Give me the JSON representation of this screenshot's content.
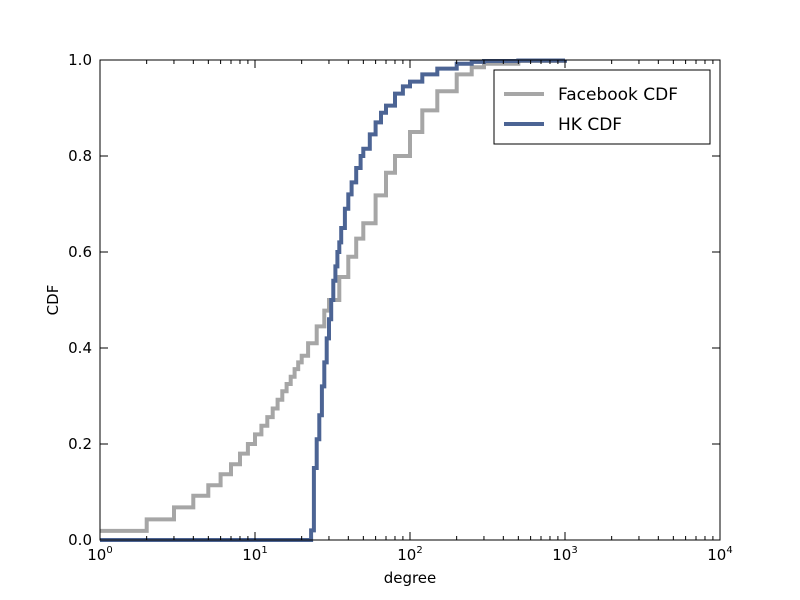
{
  "chart_data": {
    "type": "line",
    "title": "",
    "xlabel": "degree",
    "ylabel": "CDF",
    "xscale": "log",
    "xlim": [
      1,
      10000
    ],
    "ylim": [
      0,
      1
    ],
    "x_ticks": [
      {
        "base": "10",
        "exp": "0",
        "value": 1
      },
      {
        "base": "10",
        "exp": "1",
        "value": 10
      },
      {
        "base": "10",
        "exp": "2",
        "value": 100
      },
      {
        "base": "10",
        "exp": "3",
        "value": 1000
      },
      {
        "base": "10",
        "exp": "4",
        "value": 10000
      }
    ],
    "y_ticks": [
      "0.0",
      "0.2",
      "0.4",
      "0.6",
      "0.8",
      "1.0"
    ],
    "grid": false,
    "legend": "top-right",
    "series": [
      {
        "name": "Facebook CDF",
        "color": "#a6a6a6",
        "step": true,
        "x": [
          1,
          2,
          3,
          4,
          5,
          6,
          7,
          8,
          9,
          10,
          11,
          12,
          13,
          14,
          15,
          16,
          17,
          18,
          19,
          20,
          22,
          25,
          28,
          30,
          35,
          40,
          45,
          50,
          60,
          70,
          80,
          100,
          120,
          150,
          200,
          250,
          300,
          500,
          1000
        ],
        "y": [
          0.019,
          0.043,
          0.068,
          0.092,
          0.114,
          0.137,
          0.158,
          0.18,
          0.2,
          0.22,
          0.238,
          0.256,
          0.274,
          0.292,
          0.31,
          0.325,
          0.34,
          0.356,
          0.37,
          0.384,
          0.41,
          0.445,
          0.478,
          0.5,
          0.548,
          0.59,
          0.628,
          0.66,
          0.718,
          0.765,
          0.8,
          0.85,
          0.895,
          0.935,
          0.97,
          0.985,
          0.992,
          0.998,
          1.0
        ]
      },
      {
        "name": "HK CDF",
        "color": "#4c6494",
        "step": true,
        "x": [
          1,
          23,
          24,
          25,
          26,
          27,
          28,
          29,
          30,
          31,
          32,
          33,
          34,
          35,
          36,
          38,
          40,
          42,
          45,
          48,
          50,
          55,
          60,
          65,
          70,
          80,
          90,
          100,
          120,
          150,
          200,
          250,
          300,
          500,
          1000
        ],
        "y": [
          0.0,
          0.02,
          0.15,
          0.21,
          0.26,
          0.32,
          0.37,
          0.42,
          0.46,
          0.5,
          0.54,
          0.57,
          0.6,
          0.62,
          0.65,
          0.69,
          0.72,
          0.745,
          0.775,
          0.8,
          0.815,
          0.845,
          0.87,
          0.89,
          0.905,
          0.93,
          0.945,
          0.955,
          0.97,
          0.982,
          0.992,
          0.996,
          0.998,
          0.999,
          1.0
        ]
      }
    ]
  }
}
